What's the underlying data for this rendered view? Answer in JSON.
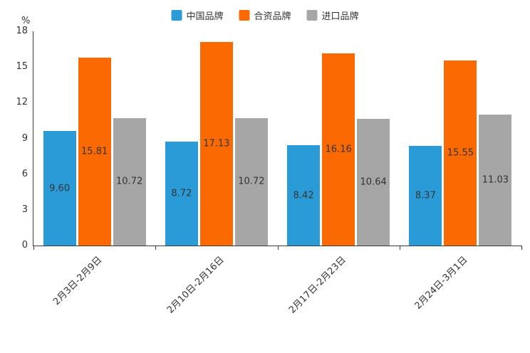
{
  "chart_data": {
    "type": "bar",
    "title": "",
    "ylabel": "%",
    "xlabel": "",
    "ylim": [
      0,
      18
    ],
    "yticks": [
      0,
      3,
      6,
      9,
      12,
      15,
      18
    ],
    "grid": false,
    "legend_position": "top",
    "categories": [
      "2月3日-2月9日",
      "2月10日-2月16日",
      "2月17日-2月23日",
      "2月24日-3月1日"
    ],
    "series": [
      {
        "name": "中国品牌",
        "color": "#2B9BD7",
        "values": [
          9.6,
          8.72,
          8.42,
          8.37
        ]
      },
      {
        "name": "合资品牌",
        "color": "#FB6A02",
        "values": [
          15.81,
          17.13,
          16.16,
          15.55
        ]
      },
      {
        "name": "进口品牌",
        "color": "#A6A6A6",
        "values": [
          10.72,
          10.72,
          10.64,
          11.03
        ]
      }
    ]
  }
}
